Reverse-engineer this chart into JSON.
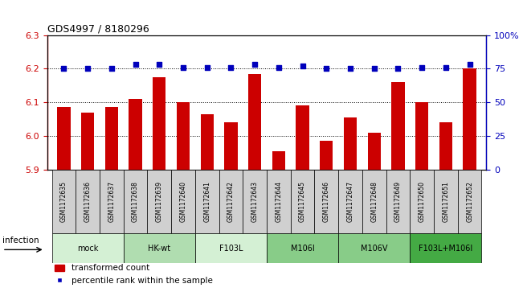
{
  "title": "GDS4997 / 8180296",
  "samples": [
    "GSM1172635",
    "GSM1172636",
    "GSM1172637",
    "GSM1172638",
    "GSM1172639",
    "GSM1172640",
    "GSM1172641",
    "GSM1172642",
    "GSM1172643",
    "GSM1172644",
    "GSM1172645",
    "GSM1172646",
    "GSM1172647",
    "GSM1172648",
    "GSM1172649",
    "GSM1172650",
    "GSM1172651",
    "GSM1172652"
  ],
  "red_values": [
    6.085,
    6.07,
    6.085,
    6.11,
    6.175,
    6.1,
    6.065,
    6.04,
    6.185,
    5.955,
    6.09,
    5.985,
    6.055,
    6.01,
    6.16,
    6.1,
    6.04,
    6.2
  ],
  "blue_values": [
    75,
    75,
    75,
    78,
    78,
    76,
    76,
    76,
    78,
    76,
    77,
    75,
    75,
    75,
    75,
    76,
    76,
    78
  ],
  "groups": [
    {
      "label": "mock",
      "start": 0,
      "end": 3
    },
    {
      "label": "HK-wt",
      "start": 3,
      "end": 6
    },
    {
      "label": "F103L",
      "start": 6,
      "end": 9
    },
    {
      "label": "M106I",
      "start": 9,
      "end": 12
    },
    {
      "label": "M106V",
      "start": 12,
      "end": 15
    },
    {
      "label": "F103L+M106I",
      "start": 15,
      "end": 18
    }
  ],
  "group_colors": [
    "#d4f0d4",
    "#b0ddb0",
    "#d4f0d4",
    "#88cc88",
    "#88cc88",
    "#44aa44"
  ],
  "ylim_left": [
    5.9,
    6.3
  ],
  "ylim_right": [
    0,
    100
  ],
  "yticks_left": [
    5.9,
    6.0,
    6.1,
    6.2,
    6.3
  ],
  "yticks_right": [
    0,
    25,
    50,
    75,
    100
  ],
  "bar_color": "#cc0000",
  "dot_color": "#0000bb",
  "bar_bottom": 5.9,
  "infection_label": "infection",
  "legend_bar": "transformed count",
  "legend_dot": "percentile rank within the sample"
}
